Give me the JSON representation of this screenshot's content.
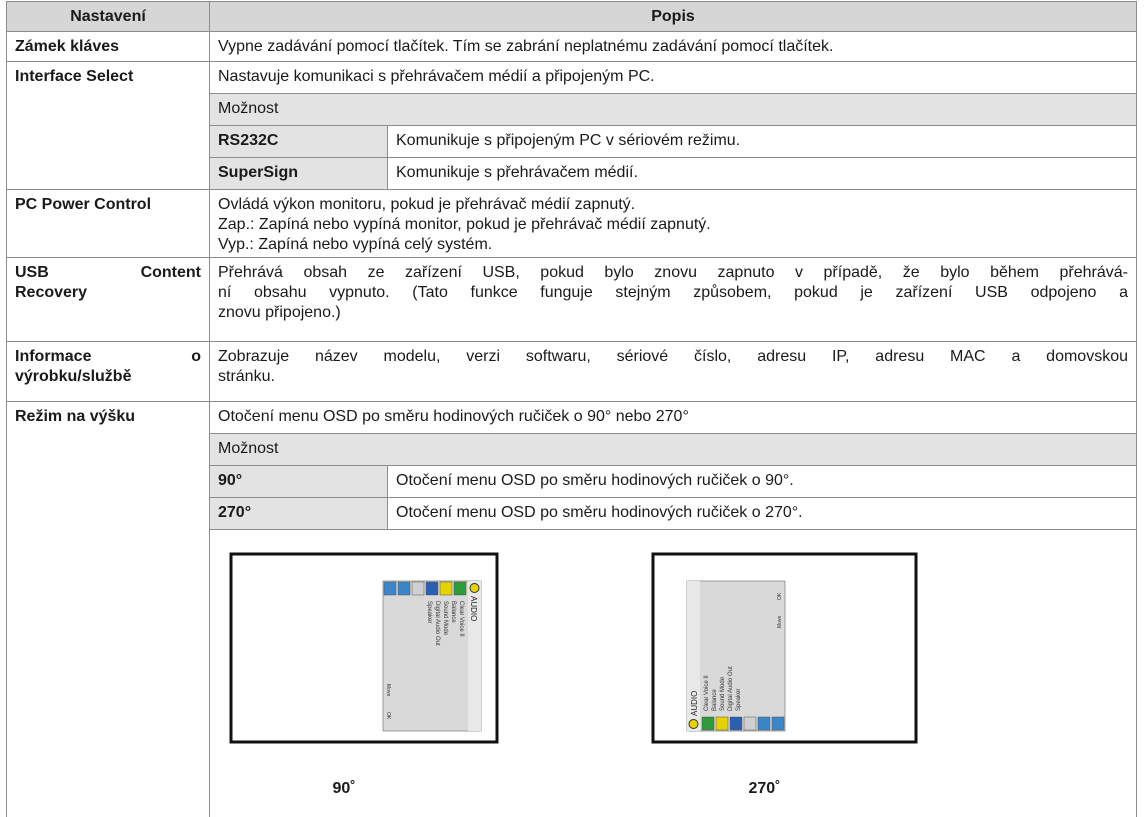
{
  "table": {
    "headers": [
      "Nastavení",
      "Popis"
    ],
    "rows": [
      {
        "setting": [
          "Zámek kláves"
        ],
        "description": [
          "Vypne zadávání pomocí tlačítek. Tím se zabrání neplatnému zadávání pomocí tlačítek."
        ]
      },
      {
        "setting": [
          "Interface Select"
        ],
        "description": [
          "Nastavuje komunikaci s přehrávačem médií a připojeným PC."
        ],
        "options_label": "Možnost",
        "options": [
          [
            "RS232C",
            "Komunikuje s připojeným PC v sériovém režimu."
          ],
          [
            "SuperSign",
            "Komunikuje s přehrávačem médií."
          ]
        ]
      },
      {
        "setting": [
          "PC Power Control"
        ],
        "description": [
          "Ovládá výkon monitoru, pokud je přehrávač médií zapnutý.",
          "Zap.: Zapíná nebo vypíná monitor, pokud je přehrávač médií zapnutý.",
          "Vyp.: Zapíná nebo vypíná celý systém."
        ]
      },
      {
        "setting": [
          "USB Content",
          "Recovery"
        ],
        "description": [
          "Přehrává obsah ze zařízení USB, pokud bylo znovu zapnuto v případě, že bylo během přehrává-",
          "ní obsahu vypnuto. (Tato funkce funguje stejným způsobem, pokud je zařízení USB odpojeno a",
          "znovu připojeno.)"
        ]
      },
      {
        "setting": [
          "Informace o",
          "výrobku/službě"
        ],
        "description": [
          "Zobrazuje název modelu, verzi softwaru, sériové číslo, adresu IP, adresu MAC a domovskou",
          "stránku."
        ]
      },
      {
        "setting": [
          "Režim na výšku"
        ],
        "description": [
          "Otočení menu OSD po směru hodinových ručiček o 90° nebo 270°"
        ],
        "options_label": "Možnost",
        "options": [
          [
            "90°",
            "Otočení menu OSD po směru hodinových ručiček o 90°."
          ],
          [
            "270°",
            "Otočení menu OSD po směru hodinových ručiček o 270°."
          ]
        ],
        "illustrations": [
          {
            "caption": "90˚",
            "osd_title": "AUDIO",
            "osd_items": [
              "Clear Voice II",
              "Balance",
              "Sound Mode",
              "Digital Audio Out",
              "Speaker"
            ],
            "osd_hints": [
              "Move",
              "OK"
            ]
          },
          {
            "caption": "270˚",
            "osd_title": "AUDIO",
            "osd_items": [
              "Clear Voice II",
              "Balance",
              "Sound Mode",
              "Digital Audio Out",
              "Speaker"
            ],
            "osd_hints": [
              "Move",
              "OK"
            ]
          }
        ]
      }
    ]
  }
}
